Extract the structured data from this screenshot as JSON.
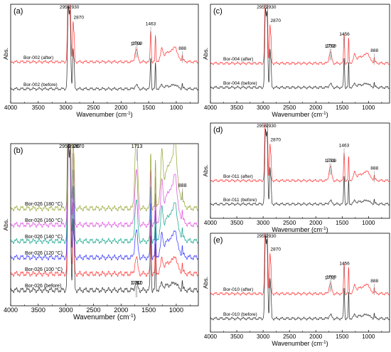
{
  "chart_data": [
    {
      "id": "a",
      "type": "line",
      "panel_label": "(a)",
      "xlabel": "Wavenumber (cm",
      "xlabel_sup": "-1",
      "xlabel_end": ")",
      "ylabel": "Abs.",
      "xlim": [
        4000,
        600
      ],
      "x_ticks": [
        4000,
        3500,
        3000,
        2500,
        2000,
        1500,
        1000
      ],
      "peak_labels": [
        {
          "x": 2956,
          "text": "2956"
        },
        {
          "x": 2930,
          "text": "2930"
        },
        {
          "x": 2870,
          "text": "2870"
        },
        {
          "x": 1734,
          "text": "1734"
        },
        {
          "x": 1709,
          "text": "1709"
        },
        {
          "x": 1463,
          "text": "1463"
        },
        {
          "x": 888,
          "text": "888"
        }
      ],
      "series": [
        {
          "name": "Bor-002 (before)",
          "color": "#333333",
          "carbonyl": 0.05,
          "hump": 0.04,
          "offset": 0
        },
        {
          "name": "Bor-002 (after)",
          "color": "#ff3b3b",
          "carbonyl": 0.16,
          "hump": 0.14,
          "offset": 1
        }
      ]
    },
    {
      "id": "c",
      "type": "line",
      "panel_label": "(c)",
      "xlabel": "Wavenumber (cm",
      "xlabel_sup": "-1",
      "xlabel_end": ")",
      "ylabel": "Abs.",
      "xlim": [
        4000,
        600
      ],
      "x_ticks": [
        4000,
        3500,
        3000,
        2500,
        2000,
        1500,
        1000
      ],
      "peak_labels": [
        {
          "x": 2955,
          "text": "2955"
        },
        {
          "x": 2930,
          "text": "2930"
        },
        {
          "x": 2870,
          "text": "2870"
        },
        {
          "x": 1732,
          "text": "1732"
        },
        {
          "x": 1709,
          "text": "1709"
        },
        {
          "x": 1456,
          "text": "1456"
        },
        {
          "x": 888,
          "text": "888"
        }
      ],
      "series": [
        {
          "name": "Bor-004 (before)",
          "color": "#333333",
          "carbonyl": 0.05,
          "hump": 0.04,
          "offset": 0
        },
        {
          "name": "Bor-004 (after)",
          "color": "#ff3b3b",
          "carbonyl": 0.15,
          "hump": 0.1,
          "offset": 1
        }
      ]
    },
    {
      "id": "b",
      "type": "line",
      "panel_label": "(b)",
      "xlabel": "Wavenumber (cm",
      "xlabel_sup": "-1",
      "xlabel_end": ")",
      "ylabel": "Abs.",
      "xlim": [
        4000,
        600
      ],
      "x_ticks": [
        4000,
        3500,
        3000,
        2500,
        2000,
        1500,
        1000
      ],
      "peak_labels": [
        {
          "x": 2956,
          "text": "2956"
        },
        {
          "x": 2930,
          "text": "2930"
        },
        {
          "x": 2870,
          "text": "2870"
        },
        {
          "x": 1713,
          "text": "1713"
        },
        {
          "x": 1732,
          "text": "1732"
        },
        {
          "x": 1710,
          "text": "1710"
        },
        {
          "x": 888,
          "text": "888"
        }
      ],
      "series": [
        {
          "name": "Bor-026 (before)",
          "color": "#333333",
          "carbonyl": 0.05,
          "hump": 0.04,
          "offset": 0
        },
        {
          "name": "Bor-026 (100 °C)",
          "color": "#ff3b3b",
          "carbonyl": 0.12,
          "hump": 0.09,
          "offset": 1
        },
        {
          "name": "Bor-026 (120 °C)",
          "color": "#3b3bff",
          "carbonyl": 0.2,
          "hump": 0.14,
          "offset": 2
        },
        {
          "name": "Bor-026 (140 °C)",
          "color": "#1aa88f",
          "carbonyl": 0.3,
          "hump": 0.2,
          "offset": 3
        },
        {
          "name": "Bor-026 (160 °C)",
          "color": "#e055e0",
          "carbonyl": 0.4,
          "hump": 0.26,
          "offset": 4
        },
        {
          "name": "Bor-026 (180 °C)",
          "color": "#9aa83a",
          "carbonyl": 0.55,
          "hump": 0.34,
          "offset": 5
        }
      ]
    },
    {
      "id": "d",
      "type": "line",
      "panel_label": "(d)",
      "xlabel": "Wavenumber (cm",
      "xlabel_sup": "-1",
      "xlabel_end": ")",
      "ylabel": "Abs.",
      "xlim": [
        4000,
        600
      ],
      "x_ticks": [
        4000,
        3500,
        3000,
        2500,
        2000,
        1500,
        1000
      ],
      "peak_labels": [
        {
          "x": 2956,
          "text": "2956"
        },
        {
          "x": 2930,
          "text": "2930"
        },
        {
          "x": 2870,
          "text": "2870"
        },
        {
          "x": 1733,
          "text": "1733"
        },
        {
          "x": 1709,
          "text": "1709"
        },
        {
          "x": 1463,
          "text": "1463"
        },
        {
          "x": 888,
          "text": "888"
        }
      ],
      "series": [
        {
          "name": "Bor-011 (before)",
          "color": "#333333",
          "carbonyl": 0.05,
          "hump": 0.04,
          "offset": 0
        },
        {
          "name": "Bor-011 (after)",
          "color": "#ff3b3b",
          "carbonyl": 0.2,
          "hump": 0.1,
          "offset": 1
        }
      ]
    },
    {
      "id": "e",
      "type": "line",
      "panel_label": "(e)",
      "xlabel": "Wavenumber (cm",
      "xlabel_sup": "-1",
      "xlabel_end": ")",
      "ylabel": "Abs.",
      "xlim": [
        4000,
        600
      ],
      "x_ticks": [
        4000,
        3500,
        3000,
        2500,
        2000,
        1500,
        1000
      ],
      "peak_labels": [
        {
          "x": 2955,
          "text": "2955"
        },
        {
          "x": 2930,
          "text": "2930"
        },
        {
          "x": 2870,
          "text": "2870"
        },
        {
          "x": 1732,
          "text": "1732"
        },
        {
          "x": 1709,
          "text": "1709"
        },
        {
          "x": 1456,
          "text": "1456"
        },
        {
          "x": 888,
          "text": "888"
        }
      ],
      "series": [
        {
          "name": "Bor-010 (before)",
          "color": "#333333",
          "carbonyl": 0.05,
          "hump": 0.04,
          "offset": 0
        },
        {
          "name": "Bor-010 (after)",
          "color": "#ff3b3b",
          "carbonyl": 0.13,
          "hump": 0.09,
          "offset": 1
        }
      ]
    }
  ]
}
